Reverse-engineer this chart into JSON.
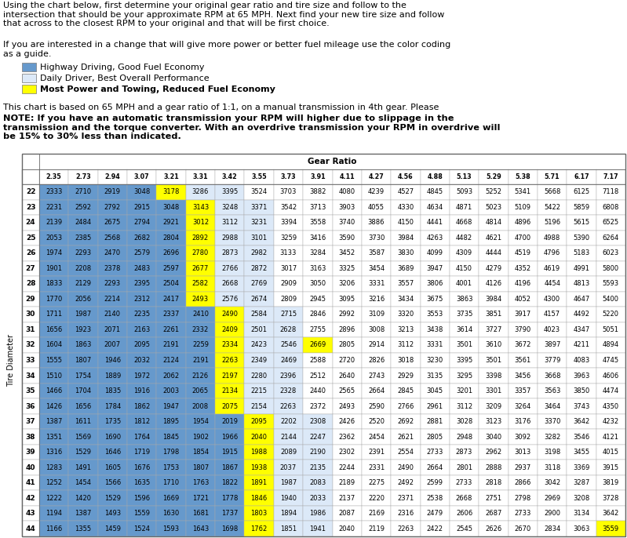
{
  "intro_text1": "Using the chart below, first determine your original gear ratio and tire size and follow to the\nintersection that should be your approximate RPM at 65 MPH. Next find your new tire size and follow\nthat across to the closest RPM to your original and that will be first choice.",
  "intro_text2": "If you are interested in a change that will give more power or better fuel mileage use the color coding\nas a guide.",
  "legend": [
    {
      "color": "#6699cc",
      "label": "Highway Driving, Good Fuel Economy"
    },
    {
      "color": "#dce9f8",
      "label": "Daily Driver, Best Overall Performance"
    },
    {
      "color": "#ffff00",
      "label": "Most Power and Towing, Reduced Fuel Economy"
    }
  ],
  "note_text1": "This chart is based on 65 MPH and a gear ratio of 1:1, on a manual transmission in 4th gear. Please",
  "note_text2": "NOTE: If you have an automatic transmission your RPM will higher due to slippage in the\ntransmission and the torque converter. With an overdrive transmission your RPM in overdrive will\nbe 15% to 30% less than indicated.",
  "gear_ratios": [
    "2.35",
    "2.73",
    "2.94",
    "3.07",
    "3.21",
    "3.31",
    "3.42",
    "3.55",
    "3.73",
    "3.91",
    "4.11",
    "4.27",
    "4.56",
    "4.88",
    "5.13",
    "5.29",
    "5.38",
    "5.71",
    "6.17",
    "7.17"
  ],
  "tire_diameters": [
    22,
    23,
    24,
    25,
    26,
    27,
    28,
    29,
    30,
    31,
    32,
    33,
    34,
    35,
    36,
    37,
    38,
    39,
    40,
    41,
    42,
    43,
    44
  ],
  "table_data": [
    [
      2333,
      2710,
      2919,
      3048,
      3178,
      3286,
      3395,
      3524,
      3703,
      3882,
      4080,
      4239,
      4527,
      4845,
      5093,
      5252,
      5341,
      5668,
      6125,
      7118
    ],
    [
      2231,
      2592,
      2792,
      2915,
      3048,
      3143,
      3248,
      3371,
      3542,
      3713,
      3903,
      4055,
      4330,
      4634,
      4871,
      5023,
      5109,
      5422,
      5859,
      6808
    ],
    [
      2139,
      2484,
      2675,
      2794,
      2921,
      3012,
      3112,
      3231,
      3394,
      3558,
      3740,
      3886,
      4150,
      4441,
      4668,
      4814,
      4896,
      5196,
      5615,
      6525
    ],
    [
      2053,
      2385,
      2568,
      2682,
      2804,
      2892,
      2988,
      3101,
      3259,
      3416,
      3590,
      3730,
      3984,
      4263,
      4482,
      4621,
      4700,
      4988,
      5390,
      6264
    ],
    [
      1974,
      2293,
      2470,
      2579,
      2696,
      2780,
      2873,
      2982,
      3133,
      3284,
      3452,
      3587,
      3830,
      4099,
      4309,
      4444,
      4519,
      4796,
      5183,
      6023
    ],
    [
      1901,
      2208,
      2378,
      2483,
      2597,
      2677,
      2766,
      2872,
      3017,
      3163,
      3325,
      3454,
      3689,
      3947,
      4150,
      4279,
      4352,
      4619,
      4991,
      5800
    ],
    [
      1833,
      2129,
      2293,
      2395,
      2504,
      2582,
      2668,
      2769,
      2909,
      3050,
      3206,
      3331,
      3557,
      3806,
      4001,
      4126,
      4196,
      4454,
      4813,
      5593
    ],
    [
      1770,
      2056,
      2214,
      2312,
      2417,
      2493,
      2576,
      2674,
      2809,
      2945,
      3095,
      3216,
      3434,
      3675,
      3863,
      3984,
      4052,
      4300,
      4647,
      5400
    ],
    [
      1711,
      1987,
      2140,
      2235,
      2337,
      2410,
      2490,
      2584,
      2715,
      2846,
      2992,
      3109,
      3320,
      3553,
      3735,
      3851,
      3917,
      4157,
      4492,
      5220
    ],
    [
      1656,
      1923,
      2071,
      2163,
      2261,
      2332,
      2409,
      2501,
      2628,
      2755,
      2896,
      3008,
      3213,
      3438,
      3614,
      3727,
      3790,
      4023,
      4347,
      5051
    ],
    [
      1604,
      1863,
      2007,
      2095,
      2191,
      2259,
      2334,
      2423,
      2546,
      2669,
      2805,
      2914,
      3112,
      3331,
      3501,
      3610,
      3672,
      3897,
      4211,
      4894
    ],
    [
      1555,
      1807,
      1946,
      2032,
      2124,
      2191,
      2263,
      2349,
      2469,
      2588,
      2720,
      2826,
      3018,
      3230,
      3395,
      3501,
      3561,
      3779,
      4083,
      4745
    ],
    [
      1510,
      1754,
      1889,
      1972,
      2062,
      2126,
      2197,
      2280,
      2396,
      2512,
      2640,
      2743,
      2929,
      3135,
      3295,
      3398,
      3456,
      3668,
      3963,
      4606
    ],
    [
      1466,
      1704,
      1835,
      1916,
      2003,
      2065,
      2134,
      2215,
      2328,
      2440,
      2565,
      2664,
      2845,
      3045,
      3201,
      3301,
      3357,
      3563,
      3850,
      4474
    ],
    [
      1426,
      1656,
      1784,
      1862,
      1947,
      2008,
      2075,
      2154,
      2263,
      2372,
      2493,
      2590,
      2766,
      2961,
      3112,
      3209,
      3264,
      3464,
      3743,
      4350
    ],
    [
      1387,
      1611,
      1735,
      1812,
      1895,
      1954,
      2019,
      2095,
      2202,
      2308,
      2426,
      2520,
      2692,
      2881,
      3028,
      3123,
      3176,
      3370,
      3642,
      4232
    ],
    [
      1351,
      1569,
      1690,
      1764,
      1845,
      1902,
      1966,
      2040,
      2144,
      2247,
      2362,
      2454,
      2621,
      2805,
      2948,
      3040,
      3092,
      3282,
      3546,
      4121
    ],
    [
      1316,
      1529,
      1646,
      1719,
      1798,
      1854,
      1915,
      1988,
      2089,
      2190,
      2302,
      2391,
      2554,
      2733,
      2873,
      2962,
      3013,
      3198,
      3455,
      4015
    ],
    [
      1283,
      1491,
      1605,
      1676,
      1753,
      1807,
      1867,
      1938,
      2037,
      2135,
      2244,
      2331,
      2490,
      2664,
      2801,
      2888,
      2937,
      3118,
      3369,
      3915
    ],
    [
      1252,
      1454,
      1566,
      1635,
      1710,
      1763,
      1822,
      1891,
      1987,
      2083,
      2189,
      2275,
      2492,
      2599,
      2733,
      2818,
      2866,
      3042,
      3287,
      3819
    ],
    [
      1222,
      1420,
      1529,
      1596,
      1669,
      1721,
      1778,
      1846,
      1940,
      2033,
      2137,
      2220,
      2371,
      2538,
      2668,
      2751,
      2798,
      2969,
      3208,
      3728
    ],
    [
      1194,
      1387,
      1493,
      1559,
      1630,
      1681,
      1737,
      1803,
      1894,
      1986,
      2087,
      2169,
      2316,
      2479,
      2606,
      2687,
      2733,
      2900,
      3134,
      3642
    ],
    [
      1166,
      1355,
      1459,
      1524,
      1593,
      1643,
      1698,
      1762,
      1851,
      1941,
      2040,
      2119,
      2263,
      2422,
      2545,
      2626,
      2670,
      2834,
      3063,
      3559
    ]
  ],
  "dark_blue": "#6699cc",
  "light_blue": "#dce9f8",
  "yellow": "#ffff00",
  "cell_colors": [
    [
      "B",
      "B",
      "B",
      "B",
      "Y",
      "L",
      "L",
      "W",
      "W",
      "W",
      "W",
      "W",
      "W",
      "W",
      "W",
      "W",
      "W",
      "W",
      "W",
      "W"
    ],
    [
      "B",
      "B",
      "B",
      "B",
      "B",
      "Y",
      "L",
      "L",
      "W",
      "W",
      "W",
      "W",
      "W",
      "W",
      "W",
      "W",
      "W",
      "W",
      "W",
      "W"
    ],
    [
      "B",
      "B",
      "B",
      "B",
      "B",
      "Y",
      "L",
      "L",
      "W",
      "W",
      "W",
      "W",
      "W",
      "W",
      "W",
      "W",
      "W",
      "W",
      "W",
      "W"
    ],
    [
      "B",
      "B",
      "B",
      "B",
      "B",
      "Y",
      "L",
      "L",
      "W",
      "W",
      "W",
      "W",
      "W",
      "W",
      "W",
      "W",
      "W",
      "W",
      "W",
      "W"
    ],
    [
      "B",
      "B",
      "B",
      "B",
      "B",
      "Y",
      "L",
      "L",
      "W",
      "W",
      "W",
      "W",
      "W",
      "W",
      "W",
      "W",
      "W",
      "W",
      "W",
      "W"
    ],
    [
      "B",
      "B",
      "B",
      "B",
      "B",
      "Y",
      "L",
      "L",
      "W",
      "W",
      "W",
      "W",
      "W",
      "W",
      "W",
      "W",
      "W",
      "W",
      "W",
      "W"
    ],
    [
      "B",
      "B",
      "B",
      "B",
      "B",
      "Y",
      "L",
      "L",
      "W",
      "W",
      "W",
      "W",
      "W",
      "W",
      "W",
      "W",
      "W",
      "W",
      "W",
      "W"
    ],
    [
      "B",
      "B",
      "B",
      "B",
      "B",
      "Y",
      "L",
      "L",
      "W",
      "W",
      "W",
      "W",
      "W",
      "W",
      "W",
      "W",
      "W",
      "W",
      "W",
      "W"
    ],
    [
      "B",
      "B",
      "B",
      "B",
      "B",
      "B",
      "Y",
      "L",
      "L",
      "W",
      "W",
      "W",
      "W",
      "W",
      "W",
      "W",
      "W",
      "W",
      "W",
      "W"
    ],
    [
      "B",
      "B",
      "B",
      "B",
      "B",
      "B",
      "Y",
      "L",
      "L",
      "W",
      "W",
      "W",
      "W",
      "W",
      "W",
      "W",
      "W",
      "W",
      "W",
      "W"
    ],
    [
      "B",
      "B",
      "B",
      "B",
      "B",
      "B",
      "Y",
      "L",
      "L",
      "Y",
      "W",
      "W",
      "W",
      "W",
      "W",
      "W",
      "W",
      "W",
      "W",
      "W"
    ],
    [
      "B",
      "B",
      "B",
      "B",
      "B",
      "B",
      "Y",
      "L",
      "L",
      "W",
      "W",
      "W",
      "W",
      "W",
      "W",
      "W",
      "W",
      "W",
      "W",
      "W"
    ],
    [
      "B",
      "B",
      "B",
      "B",
      "B",
      "B",
      "Y",
      "L",
      "L",
      "W",
      "W",
      "W",
      "W",
      "W",
      "W",
      "W",
      "W",
      "W",
      "W",
      "W"
    ],
    [
      "B",
      "B",
      "B",
      "B",
      "B",
      "B",
      "Y",
      "L",
      "L",
      "W",
      "W",
      "W",
      "W",
      "W",
      "W",
      "W",
      "W",
      "W",
      "W",
      "W"
    ],
    [
      "B",
      "B",
      "B",
      "B",
      "B",
      "B",
      "Y",
      "L",
      "L",
      "W",
      "W",
      "W",
      "W",
      "W",
      "W",
      "W",
      "W",
      "W",
      "W",
      "W"
    ],
    [
      "B",
      "B",
      "B",
      "B",
      "B",
      "B",
      "B",
      "Y",
      "L",
      "L",
      "W",
      "W",
      "W",
      "W",
      "W",
      "W",
      "W",
      "W",
      "W",
      "W"
    ],
    [
      "B",
      "B",
      "B",
      "B",
      "B",
      "B",
      "B",
      "Y",
      "L",
      "L",
      "W",
      "W",
      "W",
      "W",
      "W",
      "W",
      "W",
      "W",
      "W",
      "W"
    ],
    [
      "B",
      "B",
      "B",
      "B",
      "B",
      "B",
      "B",
      "Y",
      "L",
      "L",
      "W",
      "W",
      "W",
      "W",
      "W",
      "W",
      "W",
      "W",
      "W",
      "W"
    ],
    [
      "B",
      "B",
      "B",
      "B",
      "B",
      "B",
      "B",
      "Y",
      "L",
      "L",
      "W",
      "W",
      "W",
      "W",
      "W",
      "W",
      "W",
      "W",
      "W",
      "W"
    ],
    [
      "B",
      "B",
      "B",
      "B",
      "B",
      "B",
      "B",
      "Y",
      "L",
      "L",
      "W",
      "W",
      "W",
      "W",
      "W",
      "W",
      "W",
      "W",
      "W",
      "W"
    ],
    [
      "B",
      "B",
      "B",
      "B",
      "B",
      "B",
      "B",
      "Y",
      "L",
      "L",
      "W",
      "W",
      "W",
      "W",
      "W",
      "W",
      "W",
      "W",
      "W",
      "W"
    ],
    [
      "B",
      "B",
      "B",
      "B",
      "B",
      "B",
      "B",
      "Y",
      "L",
      "L",
      "W",
      "W",
      "W",
      "W",
      "W",
      "W",
      "W",
      "W",
      "W",
      "W"
    ],
    [
      "B",
      "B",
      "B",
      "B",
      "B",
      "B",
      "B",
      "Y",
      "L",
      "L",
      "W",
      "W",
      "W",
      "W",
      "W",
      "W",
      "W",
      "W",
      "W",
      "Y"
    ]
  ]
}
